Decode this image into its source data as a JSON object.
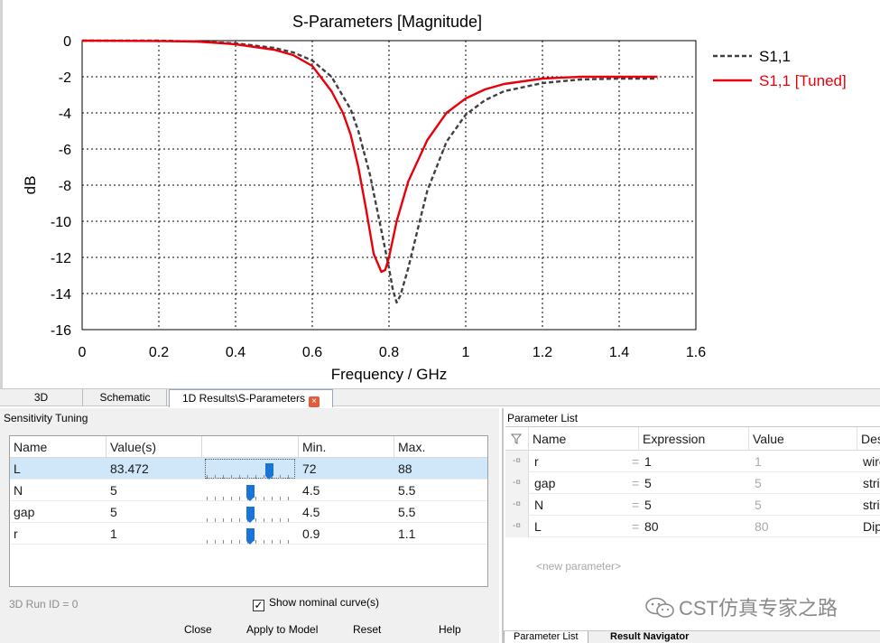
{
  "chart_data": {
    "type": "line",
    "title": "S-Parameters [Magnitude]",
    "xlabel": "Frequency / GHz",
    "ylabel": "dB",
    "xlim": [
      0,
      1.6
    ],
    "ylim": [
      -16,
      0
    ],
    "xticks": [
      "0",
      "0.2",
      "0.4",
      "0.6",
      "0.8",
      "1",
      "1.2",
      "1.4",
      "1.6"
    ],
    "yticks": [
      "0",
      "-2",
      "-4",
      "-6",
      "-8",
      "-10",
      "-12",
      "-14",
      "-16"
    ],
    "grid": true,
    "legend_position": "right",
    "series": [
      {
        "name": "S1,1",
        "color": "#404040",
        "style": "dashed",
        "x": [
          0,
          0.2,
          0.3,
          0.4,
          0.5,
          0.55,
          0.6,
          0.65,
          0.7,
          0.72,
          0.75,
          0.78,
          0.8,
          0.81,
          0.82,
          0.83,
          0.85,
          0.88,
          0.9,
          0.95,
          1.0,
          1.05,
          1.1,
          1.2,
          1.3,
          1.4,
          1.5
        ],
        "y": [
          0,
          0,
          -0.05,
          -0.15,
          -0.4,
          -0.65,
          -1.1,
          -2.0,
          -3.8,
          -5.0,
          -7.4,
          -10.5,
          -12.6,
          -13.8,
          -14.5,
          -14.1,
          -12.6,
          -10.0,
          -8.3,
          -5.6,
          -4.1,
          -3.3,
          -2.8,
          -2.35,
          -2.15,
          -2.1,
          -2.1
        ]
      },
      {
        "name": "S1,1 [Tuned]",
        "color": "#e8000b",
        "style": "solid",
        "x": [
          0,
          0.2,
          0.3,
          0.4,
          0.5,
          0.55,
          0.6,
          0.65,
          0.68,
          0.7,
          0.72,
          0.74,
          0.76,
          0.78,
          0.79,
          0.8,
          0.82,
          0.85,
          0.9,
          0.95,
          1.0,
          1.05,
          1.1,
          1.2,
          1.3,
          1.4,
          1.5
        ],
        "y": [
          0,
          -0.02,
          -0.05,
          -0.2,
          -0.5,
          -0.8,
          -1.4,
          -2.8,
          -4.0,
          -5.2,
          -7.0,
          -9.3,
          -11.8,
          -12.8,
          -12.7,
          -12.0,
          -10.0,
          -7.8,
          -5.5,
          -4.0,
          -3.2,
          -2.7,
          -2.4,
          -2.1,
          -2.0,
          -2.0,
          -2.0
        ]
      }
    ]
  },
  "tabs": [
    {
      "label": "3D"
    },
    {
      "label": "Schematic"
    },
    {
      "label": "1D Results\\S-Parameters"
    }
  ],
  "sensitivity": {
    "title": "Sensitivity Tuning",
    "columns": [
      "Name",
      "Value(s)",
      "",
      "Min.",
      "Max."
    ],
    "rows": [
      {
        "name": "L",
        "value": "83.472",
        "min": "72",
        "max": "88",
        "level": 0.717
      },
      {
        "name": "N",
        "value": "5",
        "min": "4.5",
        "max": "5.5",
        "level": 0.5
      },
      {
        "name": "gap",
        "value": "5",
        "min": "4.5",
        "max": "5.5",
        "level": 0.5
      },
      {
        "name": "r",
        "value": "1",
        "min": "0.9",
        "max": "1.1",
        "level": 0.5
      }
    ],
    "run_id": "3D Run ID = 0",
    "show_nominal_label": "Show nominal curve(s)",
    "show_nominal_checked": true,
    "buttons": {
      "close": "Close",
      "apply": "Apply to Model",
      "reset": "Reset",
      "help": "Help"
    }
  },
  "parameters": {
    "title": "Parameter List",
    "columns": [
      "Name",
      "Expression",
      "Value",
      "Des"
    ],
    "rows": [
      {
        "name": "r",
        "expression": "1",
        "value": "1",
        "description": "wire"
      },
      {
        "name": "gap",
        "expression": "5",
        "value": "5",
        "description": "strip"
      },
      {
        "name": "N",
        "expression": "5",
        "value": "5",
        "description": "strip"
      },
      {
        "name": "L",
        "expression": "80",
        "value": "80",
        "description": "Dipo"
      }
    ],
    "new_param": "<new parameter>",
    "bottom_tabs": [
      "Parameter List",
      "Result Navigator"
    ]
  },
  "watermark": "CST仿真专家之路"
}
